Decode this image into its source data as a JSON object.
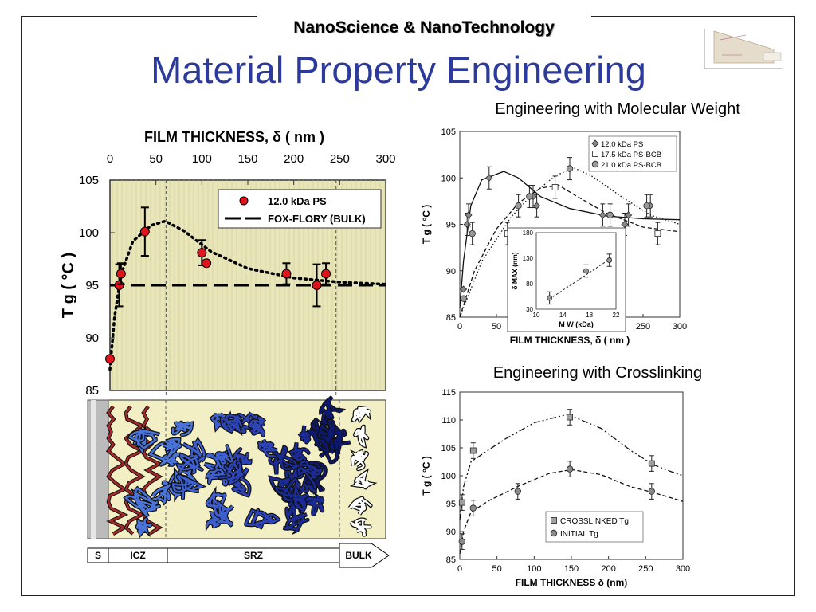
{
  "header": {
    "title": "NanoScience & NanoTechnology"
  },
  "slide": {
    "title": "Material Property Engineering"
  },
  "logo": {
    "label": "logo-diagram"
  },
  "subtitles": {
    "molecular_weight": "Engineering with Molecular Weight",
    "crosslinking": "Engineering with Crosslinking"
  },
  "zones": {
    "labels": [
      "S",
      "ICZ",
      "SRZ",
      "BULK"
    ]
  },
  "colors": {
    "title_blue": "#2b3a9b",
    "plot_bg": "#e8e6b8",
    "red_marker": "#e0141a",
    "gray_marker": "#8a8a8a"
  },
  "chart_data": [
    {
      "type": "scatter",
      "xlabel_top": "FILM  THICKNESS,  δ  ( nm )",
      "ylabel": "T g ( °C )",
      "xlim": [
        0,
        300
      ],
      "ylim": [
        85,
        105
      ],
      "xticks": [
        "0",
        "50",
        "100",
        "150",
        "200",
        "250",
        "300"
      ],
      "yticks": [
        "85",
        "90",
        "95",
        "100",
        "105"
      ],
      "series": [
        {
          "name": "12.0 kDa  PS",
          "points": [
            {
              "x": 0,
              "y": 88,
              "err": 0
            },
            {
              "x": 10,
              "y": 95,
              "err": 2
            },
            {
              "x": 12,
              "y": 96.1,
              "err": 1
            },
            {
              "x": 38,
              "y": 100.1,
              "err": 2.3
            },
            {
              "x": 100,
              "y": 98.1,
              "err": 1.2
            },
            {
              "x": 105,
              "y": 97.1,
              "err": 0
            },
            {
              "x": 192,
              "y": 96.1,
              "err": 1
            },
            {
              "x": 225,
              "y": 95,
              "err": 2
            },
            {
              "x": 235,
              "y": 96.1,
              "err": 1
            }
          ]
        }
      ],
      "lines": [
        {
          "name": "FOX-FLORY (BULK)",
          "style": "dashed",
          "y": 95
        },
        {
          "name": "fit",
          "style": "dotted",
          "points": [
            [
              0,
              87
            ],
            [
              5,
              92
            ],
            [
              12,
              96
            ],
            [
              25,
              99.2
            ],
            [
              45,
              100.7
            ],
            [
              60,
              101.1
            ],
            [
              80,
              100.2
            ],
            [
              110,
              98.2
            ],
            [
              150,
              96.6
            ],
            [
              200,
              95.7
            ],
            [
              250,
              95.3
            ],
            [
              300,
              95.1
            ]
          ]
        }
      ]
    },
    {
      "type": "scatter",
      "xlabel": "FILM  THICKNESS, δ  ( nm )",
      "ylabel": "T g ( °C )",
      "xlim": [
        0,
        300
      ],
      "ylim": [
        85,
        105
      ],
      "xticks": [
        "0",
        "50",
        "100",
        "150",
        "200",
        "250",
        "300"
      ],
      "yticks": [
        "85",
        "90",
        "95",
        "100",
        "105"
      ],
      "series": [
        {
          "name": "12.0 kDa PS",
          "marker": "diamond",
          "points": [
            [
              5,
              88
            ],
            [
              10,
              95
            ],
            [
              12,
              96
            ],
            [
              40,
              100
            ],
            [
              100,
              98
            ],
            [
              105,
              97
            ],
            [
              195,
              96
            ],
            [
              225,
              95
            ],
            [
              230,
              96
            ],
            [
              260,
              97
            ]
          ]
        },
        {
          "name": "17.5 kDa PS-BCB",
          "marker": "square",
          "points": [
            [
              65,
              94
            ],
            [
              130,
              99
            ],
            [
              270,
              94
            ]
          ]
        },
        {
          "name": "21.0 kDa PS-BCB",
          "marker": "circle",
          "points": [
            [
              5,
              87
            ],
            [
              17,
              94
            ],
            [
              80,
              97
            ],
            [
              95,
              98
            ],
            [
              150,
              101
            ],
            [
              205,
              96
            ],
            [
              255,
              97
            ]
          ]
        }
      ],
      "inset": {
        "xlabel": "M W (kDa)",
        "ylabel": "δ MAX (nm)",
        "xlim": [
          10,
          22
        ],
        "ylim": [
          30,
          180
        ],
        "xticks": [
          "10",
          "14",
          "18",
          "22"
        ],
        "yticks": [
          "30",
          "80",
          "130",
          "180"
        ],
        "points": [
          [
            12,
            52
          ],
          [
            17.5,
            105
          ],
          [
            21,
            126
          ]
        ]
      }
    },
    {
      "type": "scatter",
      "xlabel": "FILM  THICKNESS  δ  (nm)",
      "ylabel": "T g ( °C )",
      "xlim": [
        0,
        300
      ],
      "ylim": [
        85,
        115
      ],
      "xticks": [
        "0",
        "50",
        "100",
        "150",
        "200",
        "250",
        "300"
      ],
      "yticks": [
        "85",
        "90",
        "95",
        "100",
        "105",
        "110",
        "115"
      ],
      "series": [
        {
          "name": "CROSSLINKED  Tg",
          "marker": "square",
          "points": [
            [
              3,
              95.2
            ],
            [
              18,
              104.5
            ],
            [
              148,
              110.5
            ],
            [
              258,
              102.2
            ]
          ]
        },
        {
          "name": "INITIAL  Tg",
          "marker": "circle",
          "points": [
            [
              3,
              88.2
            ],
            [
              18,
              94.2
            ],
            [
              78,
              97.2
            ],
            [
              148,
              101.2
            ],
            [
              258,
              97.2
            ]
          ]
        }
      ]
    }
  ]
}
